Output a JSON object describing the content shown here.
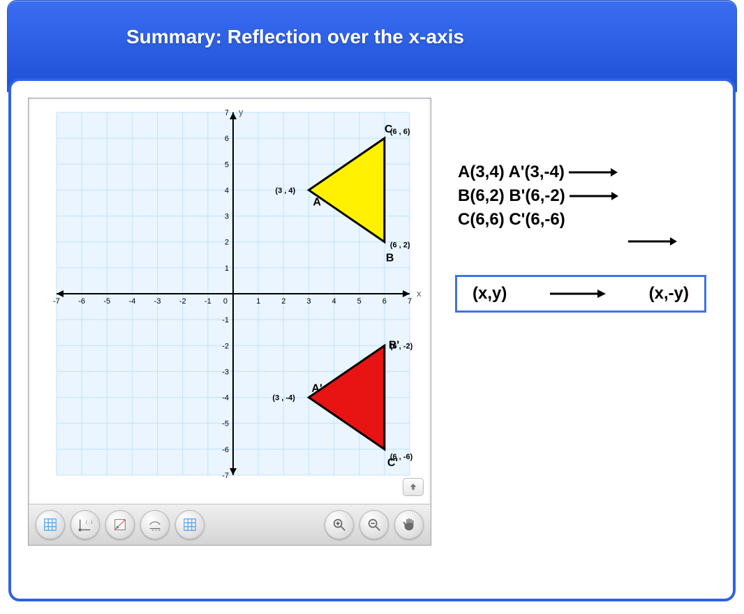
{
  "title": "Summary: Reflection over the x-axis",
  "colors": {
    "banner_top": "#3a6df0",
    "banner_bottom": "#1e50d6",
    "card_border": "#2e62e6",
    "grid_line": "#bfe2ff",
    "grid_bg": "#eaf5ff",
    "axis": "#000000",
    "triangle_original_fill": "#fff100",
    "triangle_reflected_fill": "#e81313",
    "triangle_stroke": "#000000",
    "toolbar_top": "#efefef",
    "toolbar_bottom": "#d4d4d4",
    "tool_icon_blue": "#4aa4ff",
    "tool_icon_gray": "#6b6b6b"
  },
  "graph": {
    "xlim": [
      -7,
      7
    ],
    "ylim": [
      -7,
      7
    ],
    "tick_step": 1,
    "x_label": "x",
    "y_label": "y",
    "origin_label": "0",
    "show_grid": true,
    "ticks": [
      -7,
      -6,
      -5,
      -4,
      -3,
      -2,
      -1,
      1,
      2,
      3,
      4,
      5,
      6,
      7
    ]
  },
  "original_triangle": {
    "label_A": "A",
    "A": [
      3,
      4
    ],
    "label_B": "B",
    "B": [
      6,
      2
    ],
    "label_C": "C",
    "C": [
      6,
      6
    ],
    "coord_text_A": "(3 , 4)",
    "coord_text_B": "(6 , 2)",
    "coord_text_C": "(6 , 6)"
  },
  "reflected_triangle": {
    "label_A": "A'",
    "A": [
      3,
      -4
    ],
    "label_B": "B'",
    "B": [
      6,
      -2
    ],
    "label_C": "C'",
    "C": [
      6,
      -6
    ],
    "coord_text_A": "(3 , -4)",
    "coord_text_B": "(6 , -2)",
    "coord_text_C": "(6 , -6)"
  },
  "mapping_lines": {
    "line1": "A(3,4) A'(3,-4)",
    "line2": "B(6,2) B'(6,-2)",
    "line3": "C(6,6) C'(6,-6)"
  },
  "rule": {
    "lhs": "(x,y)",
    "rhs": "(x,-y)"
  },
  "toolbar": {
    "buttons_left": [
      "grid-icon",
      "axes-icon",
      "point-flag-icon",
      "measure-icon",
      "reset-icon"
    ],
    "buttons_right": [
      "zoom-in-icon",
      "zoom-out-icon",
      "pan-icon"
    ]
  }
}
